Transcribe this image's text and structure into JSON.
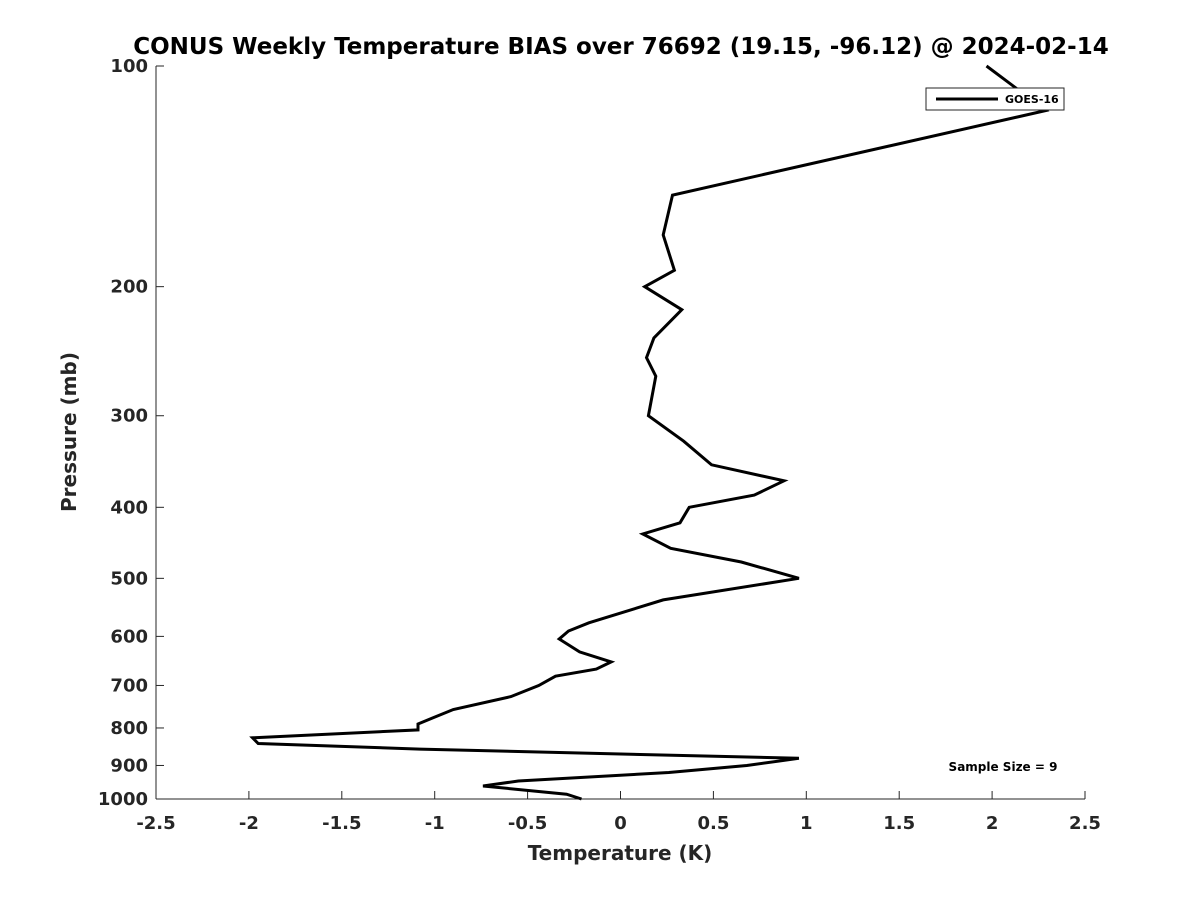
{
  "chart_data": {
    "type": "line",
    "title": "CONUS Weekly Temperature BIAS over 76692 (19.15, -96.12) @ 2024-02-14",
    "xlabel": "Temperature (K)",
    "ylabel": "Pressure (mb)",
    "xlim": [
      -2.5,
      2.5
    ],
    "ylim": [
      100,
      1000
    ],
    "yscale": "log",
    "y_reversed": true,
    "grid": false,
    "legend_placement": "top-right",
    "x_ticks": [
      "-2.5",
      "-2",
      "-1.5",
      "-1",
      "-0.5",
      "0",
      "0.5",
      "1",
      "1.5",
      "2",
      "2.5"
    ],
    "y_ticks": [
      "100",
      "200",
      "300",
      "400",
      "500",
      "600",
      "700",
      "800",
      "900",
      "1000"
    ],
    "annotation": "Sample Size = 9",
    "series": [
      {
        "name": "GOES-16",
        "color": "#000000",
        "points": [
          [
            1.97,
            100
          ],
          [
            2.29,
            115
          ],
          [
            0.28,
            150
          ],
          [
            0.23,
            170
          ],
          [
            0.29,
            190
          ],
          [
            0.13,
            200
          ],
          [
            0.33,
            215
          ],
          [
            0.18,
            235
          ],
          [
            0.14,
            250
          ],
          [
            0.19,
            265
          ],
          [
            0.15,
            300
          ],
          [
            0.34,
            325
          ],
          [
            0.49,
            350
          ],
          [
            0.88,
            368
          ],
          [
            0.72,
            385
          ],
          [
            0.37,
            400
          ],
          [
            0.32,
            420
          ],
          [
            0.12,
            435
          ],
          [
            0.27,
            455
          ],
          [
            0.65,
            475
          ],
          [
            0.96,
            500
          ],
          [
            0.23,
            535
          ],
          [
            -0.17,
            575
          ],
          [
            -0.28,
            590
          ],
          [
            -0.33,
            605
          ],
          [
            -0.22,
            630
          ],
          [
            -0.05,
            650
          ],
          [
            -0.13,
            665
          ],
          [
            -0.35,
            680
          ],
          [
            -0.44,
            700
          ],
          [
            -0.59,
            725
          ],
          [
            -0.9,
            755
          ],
          [
            -1.01,
            775
          ],
          [
            -1.09,
            790
          ],
          [
            -1.09,
            805
          ],
          [
            -1.98,
            825
          ],
          [
            -1.95,
            840
          ],
          [
            -1.08,
            855
          ],
          [
            0.96,
            880
          ],
          [
            0.68,
            900
          ],
          [
            0.26,
            920
          ],
          [
            -0.55,
            945
          ],
          [
            -0.74,
            960
          ],
          [
            -0.29,
            985
          ],
          [
            -0.21,
            1000
          ]
        ]
      }
    ]
  }
}
